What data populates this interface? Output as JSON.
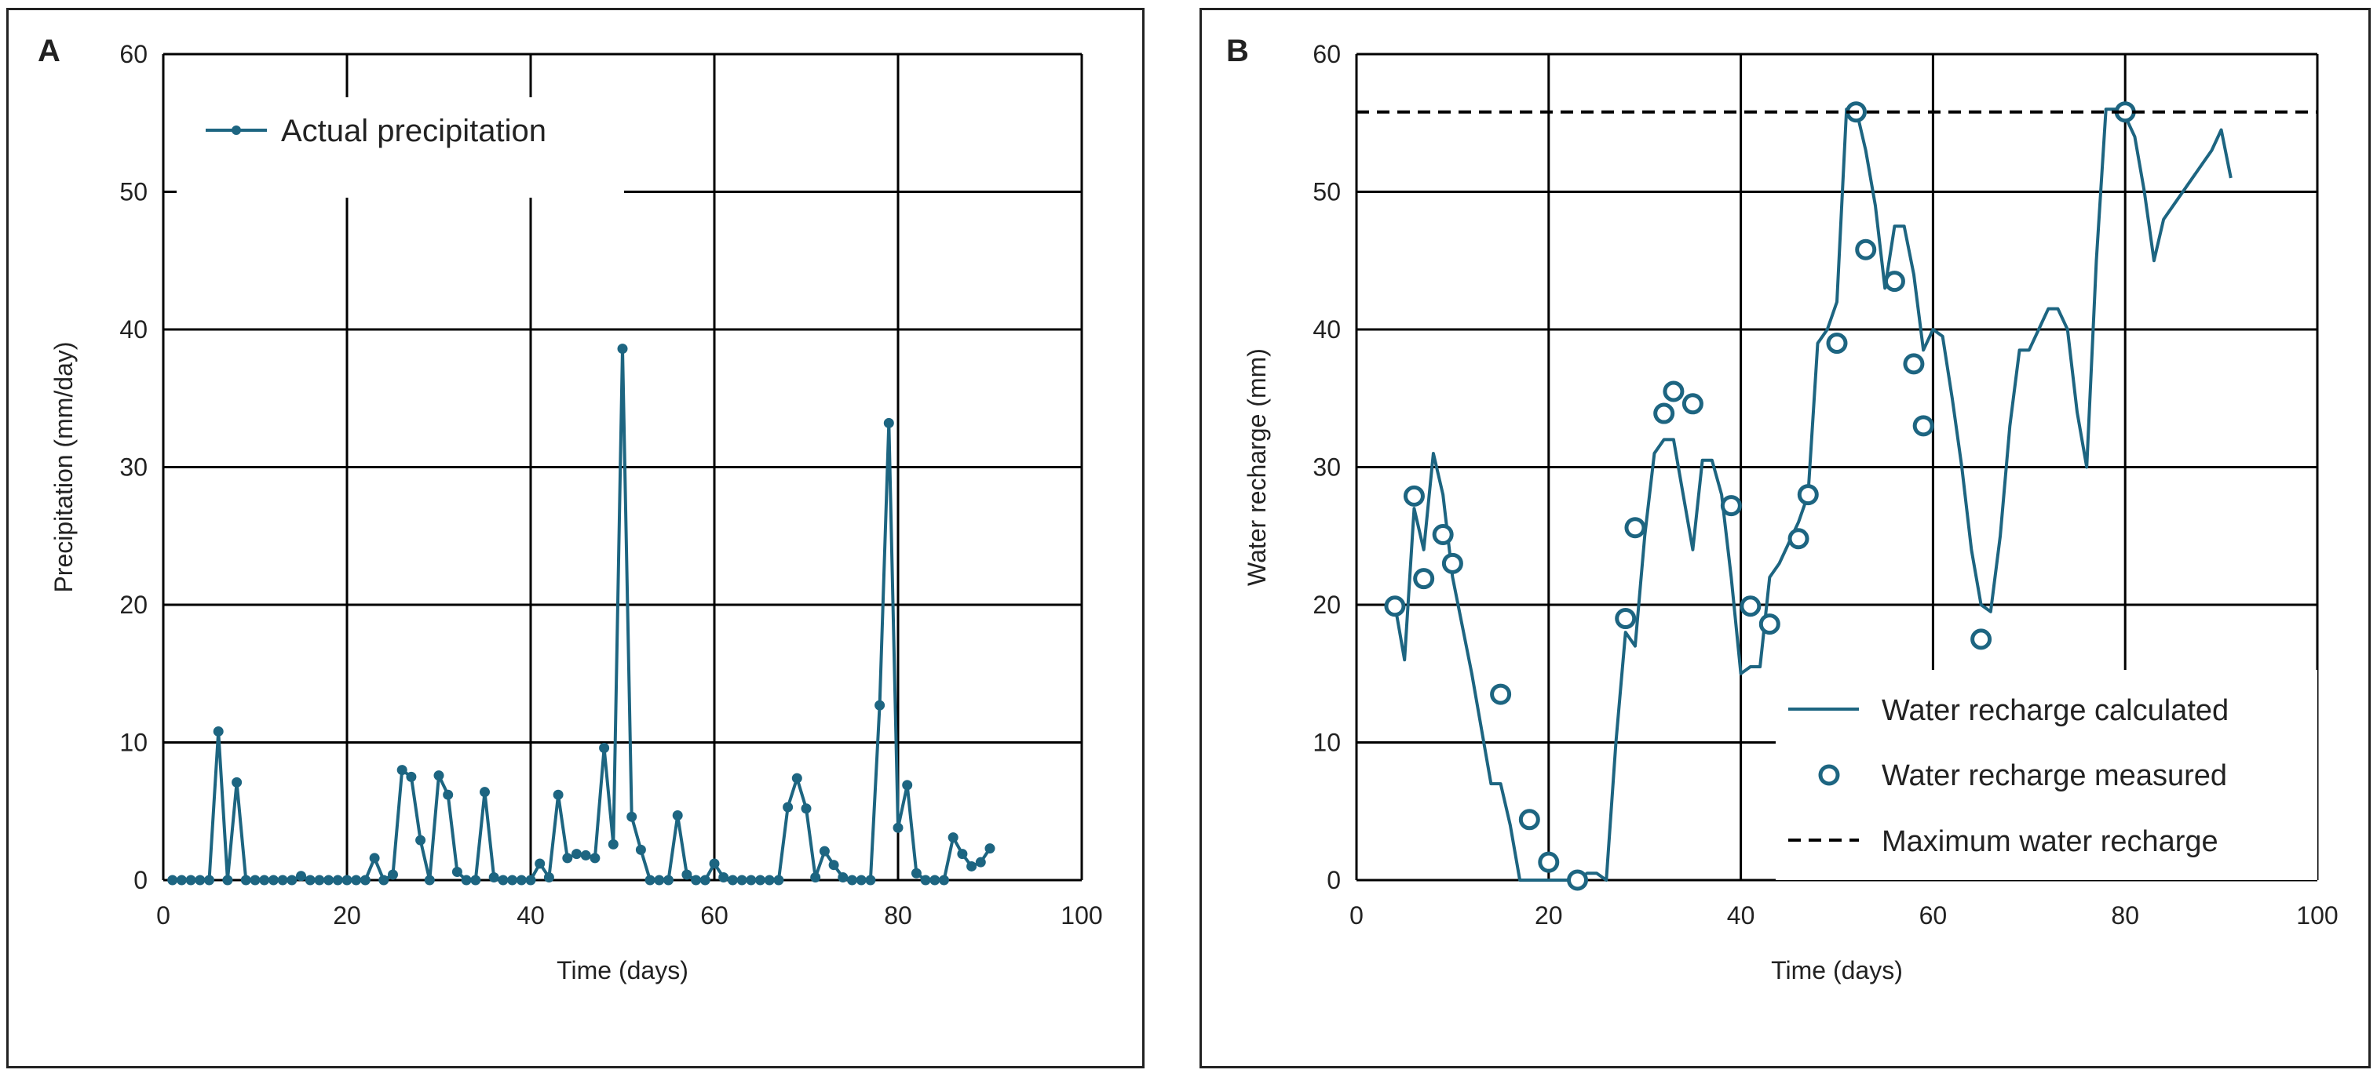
{
  "colors": {
    "series": "#1d6581",
    "grid": "#000000",
    "text": "#222222",
    "frame": "#222222"
  },
  "chart_data": [
    {
      "panel": "A",
      "type": "line",
      "xlabel": "Time (days)",
      "ylabel": "Precipitation (mm/day)",
      "xlim": [
        0,
        100
      ],
      "ylim": [
        0,
        60
      ],
      "xticks": [
        0,
        20,
        40,
        60,
        80,
        100
      ],
      "yticks": [
        0,
        10,
        20,
        30,
        40,
        50,
        60
      ],
      "grid": true,
      "legend_position": "top-left",
      "series": [
        {
          "name": "Actual precipitation",
          "style": "line-with-dots",
          "x": [
            1,
            2,
            3,
            4,
            5,
            6,
            7,
            8,
            9,
            10,
            11,
            12,
            13,
            14,
            15,
            16,
            17,
            18,
            19,
            20,
            21,
            22,
            23,
            24,
            25,
            26,
            27,
            28,
            29,
            30,
            31,
            32,
            33,
            34,
            35,
            36,
            37,
            38,
            39,
            40,
            41,
            42,
            43,
            44,
            45,
            46,
            47,
            48,
            49,
            50,
            51,
            52,
            53,
            54,
            55,
            56,
            57,
            58,
            59,
            60,
            61,
            62,
            63,
            64,
            65,
            66,
            67,
            68,
            69,
            70,
            71,
            72,
            73,
            74,
            75,
            76,
            77,
            78,
            79,
            80,
            81,
            82,
            83,
            84,
            85,
            86,
            87,
            88,
            89,
            90
          ],
          "y": [
            0,
            0,
            0,
            0,
            0,
            10.8,
            0,
            7.1,
            0,
            0,
            0,
            0,
            0,
            0,
            0.3,
            0,
            0,
            0,
            0,
            0,
            0,
            0,
            1.6,
            0,
            0.4,
            8,
            7.5,
            2.9,
            0,
            7.6,
            6.2,
            0.6,
            0,
            0,
            6.4,
            0.2,
            0,
            0,
            0,
            0,
            1.2,
            0.2,
            6.2,
            1.6,
            1.9,
            1.8,
            1.6,
            9.6,
            2.6,
            38.6,
            4.6,
            2.2,
            0,
            0,
            0,
            4.7,
            0.4,
            0,
            0,
            1.2,
            0.2,
            0,
            0,
            0,
            0,
            0,
            0,
            5.3,
            7.4,
            5.2,
            0.2,
            2.1,
            1.1,
            0.2,
            0,
            0,
            0,
            12.7,
            33.2,
            3.8,
            6.9,
            0.5,
            0,
            0,
            0,
            3.1,
            1.9,
            1,
            1.3,
            2.3
          ]
        }
      ]
    },
    {
      "panel": "B",
      "type": "line",
      "xlabel": "Time (days)",
      "ylabel": "Water recharge (mm)",
      "xlim": [
        0,
        100
      ],
      "ylim": [
        0,
        60
      ],
      "xticks": [
        0,
        20,
        40,
        60,
        80,
        100
      ],
      "yticks": [
        0,
        10,
        20,
        30,
        40,
        50,
        60
      ],
      "grid": true,
      "legend_position": "bottom-right",
      "series": [
        {
          "name": "Water recharge calculated",
          "style": "line",
          "x": [
            4,
            5,
            6,
            7,
            8,
            9,
            10,
            12,
            14,
            15,
            16,
            17,
            18,
            19,
            20,
            21,
            22,
            23,
            24,
            25,
            26,
            27,
            28,
            29,
            30,
            31,
            32,
            33,
            34,
            35,
            36,
            37,
            38,
            39,
            40,
            41,
            42,
            43,
            44,
            45,
            46,
            47,
            48,
            49,
            50,
            51,
            52,
            53,
            54,
            55,
            56,
            57,
            58,
            59,
            60,
            61,
            62,
            63,
            64,
            65,
            66,
            67,
            68,
            69,
            70,
            71,
            72,
            73,
            74,
            75,
            76,
            77,
            78,
            79,
            80,
            81,
            82,
            83,
            84,
            85,
            86,
            87,
            88,
            89,
            90,
            91
          ],
          "y": [
            20,
            16,
            27,
            24,
            31,
            28,
            22,
            15,
            7,
            7,
            4,
            0,
            0,
            0,
            0,
            0,
            0,
            0,
            0.5,
            0.5,
            0,
            10,
            18,
            17,
            25,
            31,
            32,
            32,
            28,
            24,
            30.5,
            30.5,
            28,
            22,
            15,
            15.5,
            15.5,
            22,
            23,
            24.5,
            26,
            28,
            39,
            40,
            42,
            56,
            56,
            53,
            49,
            43,
            47.5,
            47.5,
            44,
            38.5,
            40,
            39.5,
            35,
            30,
            24,
            20,
            19.5,
            25,
            33,
            38.5,
            38.5,
            40,
            41.5,
            41.5,
            40,
            34,
            30,
            45,
            56,
            56,
            55.5,
            54,
            50,
            45,
            48,
            49,
            50,
            51,
            52,
            53,
            54.5,
            51
          ]
        },
        {
          "name": "Water recharge measured",
          "style": "open-circles",
          "x": [
            4,
            6,
            7,
            9,
            10,
            15,
            18,
            20,
            23,
            28,
            29,
            32,
            33,
            35,
            39,
            41,
            43,
            46,
            47,
            50,
            52,
            53,
            56,
            58,
            59,
            65,
            80
          ],
          "y": [
            19.9,
            27.9,
            21.9,
            25.1,
            23,
            13.5,
            4.4,
            1.3,
            0,
            19,
            25.6,
            33.9,
            35.5,
            34.6,
            27.2,
            19.9,
            18.6,
            24.8,
            28,
            39,
            55.8,
            45.8,
            43.5,
            37.5,
            33,
            17.5,
            55.8
          ]
        },
        {
          "name": "Maximum water recharge",
          "style": "dashed",
          "x": [
            0,
            100
          ],
          "y": [
            55.8,
            55.8
          ]
        }
      ]
    }
  ]
}
